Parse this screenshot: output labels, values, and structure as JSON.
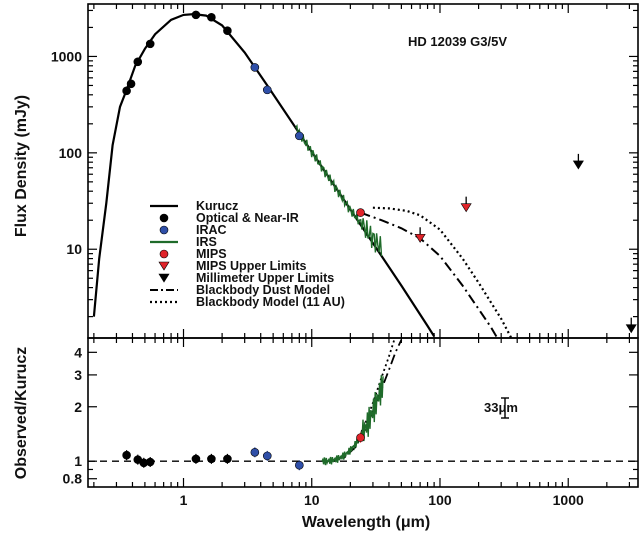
{
  "chart_data": [
    {
      "type": "scatter",
      "panel": "top",
      "annotation": "HD 12039  G3/5V",
      "xlabel": "",
      "ylabel": "Flux Density (mJy)",
      "xscale": "log",
      "yscale": "log",
      "xlim": [
        0.18,
        3500
      ],
      "ylim": [
        1.2,
        3500
      ],
      "y_ticks": [
        {
          "value": 10,
          "label": "10"
        },
        {
          "value": 100,
          "label": "100"
        },
        {
          "value": 1000,
          "label": "1000"
        }
      ],
      "legend": [
        {
          "key": "kurucz",
          "label": "Kurucz",
          "marker": "solid-line",
          "color": "#000000"
        },
        {
          "key": "optical",
          "label": "Optical & Near-IR",
          "marker": "circle",
          "color": "#000000"
        },
        {
          "key": "irac",
          "label": "IRAC",
          "marker": "circle",
          "color": "#2f4fa8"
        },
        {
          "key": "irs",
          "label": "IRS",
          "marker": "line",
          "color": "#1f6b2a"
        },
        {
          "key": "mips",
          "label": "MIPS",
          "marker": "circle",
          "color": "#e0242a"
        },
        {
          "key": "mips_ul",
          "label": "MIPS Upper Limits",
          "marker": "triangle-down",
          "color": "#e0242a"
        },
        {
          "key": "mm_ul",
          "label": "Millimeter Upper Limits",
          "marker": "triangle-down",
          "color": "#000000"
        },
        {
          "key": "bb_dust",
          "label": "Blackbody Dust Model",
          "marker": "dash-dot-line",
          "color": "#000000"
        },
        {
          "key": "bb_11au",
          "label": "Blackbody Model (11 AU)",
          "marker": "dotted-line",
          "color": "#000000"
        }
      ],
      "series": [
        {
          "key": "optical",
          "name": "Optical & Near-IR",
          "points": [
            [
              0.36,
              440
            ],
            [
              0.39,
              520
            ],
            [
              0.44,
              880
            ],
            [
              0.55,
              1350
            ],
            [
              1.25,
              2700
            ],
            [
              1.65,
              2550
            ],
            [
              2.2,
              1850
            ]
          ]
        },
        {
          "key": "irac",
          "name": "IRAC",
          "points": [
            [
              3.6,
              770
            ],
            [
              4.5,
              450
            ],
            [
              8.0,
              150
            ]
          ]
        },
        {
          "key": "mips",
          "name": "MIPS",
          "points": [
            [
              24,
              24
            ]
          ]
        },
        {
          "key": "mips_ul",
          "name": "MIPS Upper Limits",
          "points": [
            [
              70,
              13
            ],
            [
              160,
              27
            ]
          ]
        },
        {
          "key": "mm_ul",
          "name": "Millimeter Upper Limits",
          "points": [
            [
              1200,
              75
            ],
            [
              3100,
              1.5
            ]
          ]
        },
        {
          "key": "kurucz",
          "name": "Kurucz",
          "points": [
            [
              0.2,
              2
            ],
            [
              0.22,
              8
            ],
            [
              0.25,
              30
            ],
            [
              0.28,
              120
            ],
            [
              0.32,
              300
            ],
            [
              0.36,
              450
            ],
            [
              0.42,
              800
            ],
            [
              0.5,
              1200
            ],
            [
              0.6,
              1700
            ],
            [
              0.8,
              2400
            ],
            [
              1.0,
              2700
            ],
            [
              1.2,
              2750
            ],
            [
              1.5,
              2650
            ],
            [
              2.0,
              2100
            ],
            [
              3.0,
              1100
            ],
            [
              4.5,
              500
            ],
            [
              8.0,
              160
            ],
            [
              24,
              18
            ],
            [
              50,
              4.2
            ],
            [
              80,
              1.6
            ],
            [
              90,
              1.25
            ]
          ]
        },
        {
          "key": "bb_dust",
          "name": "Blackbody Dust Model",
          "points": [
            [
              24,
              24
            ],
            [
              35,
              20
            ],
            [
              50,
              16.5
            ],
            [
              70,
              13
            ],
            [
              100,
              8.5
            ],
            [
              150,
              4.2
            ],
            [
              200,
              2.4
            ],
            [
              250,
              1.55
            ],
            [
              280,
              1.2
            ]
          ]
        },
        {
          "key": "bb_11au",
          "name": "Blackbody Model (11 AU)",
          "points": [
            [
              30,
              27
            ],
            [
              40,
              26.5
            ],
            [
              55,
              25
            ],
            [
              70,
              22.5
            ],
            [
              100,
              16
            ],
            [
              150,
              8
            ],
            [
              200,
              4.5
            ],
            [
              300,
              1.9
            ],
            [
              360,
              1.2
            ]
          ]
        }
      ]
    },
    {
      "type": "scatter",
      "panel": "bottom",
      "annotation": "33μm",
      "xlabel": "Wavelength (μm)",
      "ylabel": "Observed/Kurucz",
      "xscale": "log",
      "yscale": "log",
      "xlim": [
        0.18,
        3500
      ],
      "ylim": [
        0.72,
        4.8
      ],
      "x_ticks": [
        {
          "value": 1,
          "label": "1"
        },
        {
          "value": 10,
          "label": "10"
        },
        {
          "value": 100,
          "label": "100"
        },
        {
          "value": 1000,
          "label": "1000"
        }
      ],
      "y_ticks": [
        {
          "value": 0.8,
          "label": "0.8"
        },
        {
          "value": 1,
          "label": "1"
        },
        {
          "value": 2,
          "label": "2"
        },
        {
          "value": 3,
          "label": "3"
        },
        {
          "value": 4,
          "label": "4"
        }
      ],
      "reference_line": 1.0,
      "series": [
        {
          "key": "optical",
          "name": "Optical & Near-IR",
          "points": [
            [
              0.36,
              1.08
            ],
            [
              0.44,
              1.02
            ],
            [
              0.49,
              0.98
            ],
            [
              0.55,
              0.99
            ],
            [
              1.25,
              1.03
            ],
            [
              1.65,
              1.03
            ],
            [
              2.2,
              1.03
            ]
          ]
        },
        {
          "key": "irac",
          "name": "IRAC",
          "points": [
            [
              3.6,
              1.12
            ],
            [
              4.5,
              1.07
            ],
            [
              8.0,
              0.95
            ]
          ]
        },
        {
          "key": "mips",
          "name": "MIPS",
          "points": [
            [
              24,
              1.35
            ]
          ]
        },
        {
          "key": "bb_dust",
          "name": "Blackbody Dust Model",
          "points": [
            [
              14,
              1.0
            ],
            [
              18,
              1.05
            ],
            [
              22,
              1.2
            ],
            [
              26,
              1.5
            ],
            [
              30,
              1.9
            ],
            [
              35,
              2.5
            ],
            [
              40,
              3.2
            ],
            [
              45,
              4.0
            ],
            [
              50,
              4.7
            ]
          ]
        },
        {
          "key": "bb_11au",
          "name": "Blackbody Model (11 AU)",
          "points": [
            [
              14,
              1.0
            ],
            [
              18,
              1.06
            ],
            [
              22,
              1.25
            ],
            [
              26,
              1.6
            ],
            [
              30,
              2.1
            ],
            [
              35,
              2.9
            ],
            [
              40,
              3.8
            ],
            [
              44,
              4.7
            ]
          ]
        }
      ]
    }
  ]
}
